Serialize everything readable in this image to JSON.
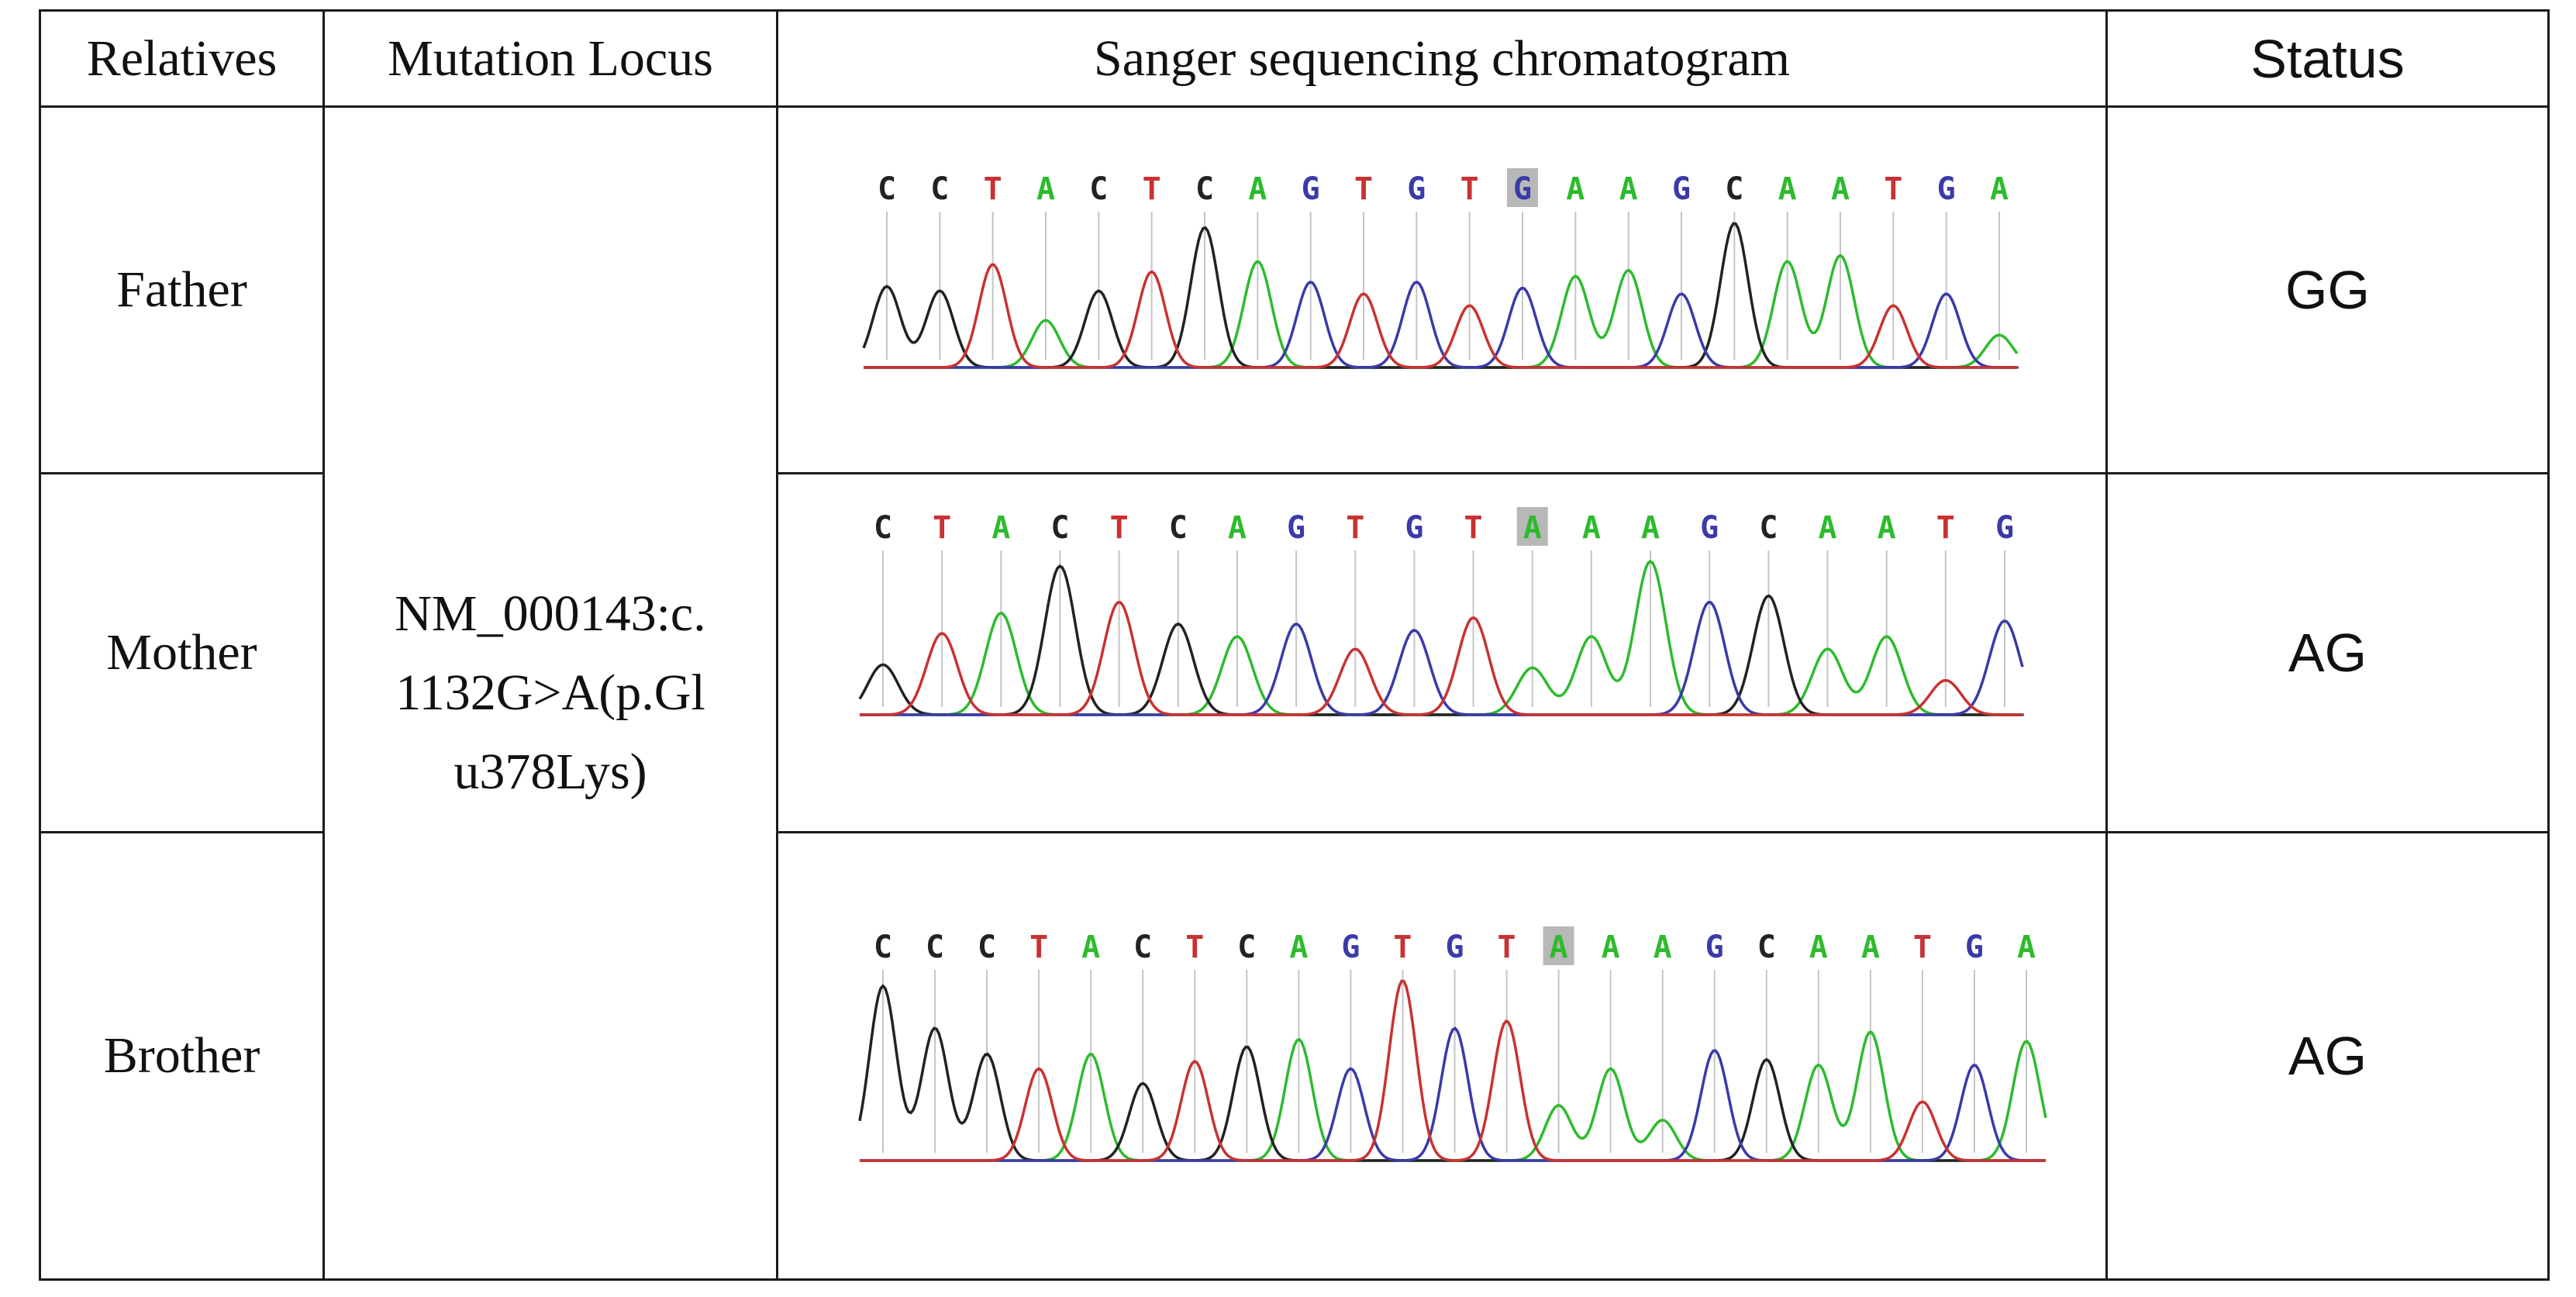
{
  "headers": {
    "relatives": "Relatives",
    "locus": "Mutation Locus",
    "chromatogram": "Sanger sequencing chromatogram",
    "status": "Status"
  },
  "mutation_locus": [
    "NM_000143:c.",
    "1132G>A(p.Gl",
    "u378Lys)"
  ],
  "rows": [
    {
      "relative": "Father",
      "status": "GG",
      "sequence": [
        "C",
        "C",
        "T",
        "A",
        "C",
        "T",
        "C",
        "A",
        "G",
        "T",
        "G",
        "T",
        "G",
        "A",
        "A",
        "G",
        "C",
        "A",
        "A",
        "T",
        "G",
        "A"
      ],
      "highlight_index": 12
    },
    {
      "relative": "Mother",
      "status": "AG",
      "sequence": [
        "C",
        "T",
        "A",
        "C",
        "T",
        "C",
        "A",
        "G",
        "T",
        "G",
        "T",
        "A",
        "A",
        "A",
        "G",
        "C",
        "A",
        "A",
        "T",
        "G"
      ],
      "highlight_index": 11
    },
    {
      "relative": "Brother",
      "status": "AG",
      "sequence": [
        "C",
        "C",
        "C",
        "T",
        "A",
        "C",
        "T",
        "C",
        "A",
        "G",
        "T",
        "G",
        "T",
        "A",
        "A",
        "A",
        "G",
        "C",
        "A",
        "A",
        "T",
        "G",
        "A"
      ],
      "highlight_index": 13
    }
  ],
  "colors": {
    "A": "#2dbb2d",
    "C": "#222222",
    "G": "#3a3aa8",
    "T": "#c83232",
    "highlight": "#b8b8b8",
    "border": "#1a1a1a"
  }
}
